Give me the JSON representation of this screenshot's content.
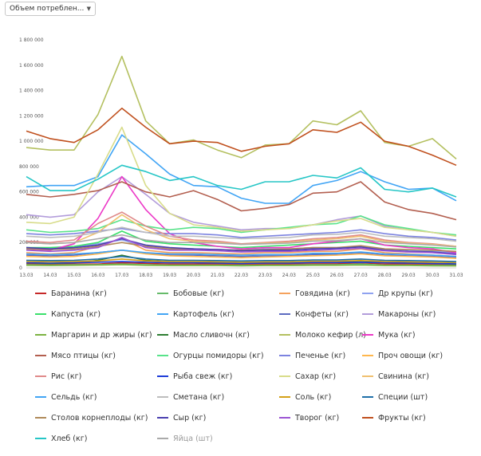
{
  "selector": {
    "value": "Объем потреблен...",
    "icon": "caret-down-icon"
  },
  "chart_data": {
    "type": "line",
    "title": "",
    "xlabel": "",
    "ylabel": "",
    "ylim": [
      0,
      1800000
    ],
    "grid": false,
    "legend_position": "bottom",
    "y_ticks": [
      "0",
      "200 000",
      "400 000",
      "600 000",
      "800 000",
      "1 000 000",
      "1 200 000",
      "1 400 000",
      "1 600 000",
      "1 800 000"
    ],
    "categories": [
      "13.03",
      "14.03",
      "15.03",
      "16.03",
      "17.03",
      "18.03",
      "19.03",
      "20.03",
      "21.03",
      "22.03",
      "23.03",
      "24.03",
      "25.03",
      "26.03",
      "27.03",
      "28.03",
      "29.03",
      "30.03",
      "31.03"
    ],
    "series": [
      {
        "name": "Баранина (кг)",
        "color": "#c62828",
        "values": [
          30000,
          28000,
          30000,
          30000,
          40000,
          35000,
          30000,
          30000,
          30000,
          28000,
          30000,
          30000,
          32000,
          32000,
          40000,
          30000,
          30000,
          28000,
          25000
        ]
      },
      {
        "name": "Бобовые (кг)",
        "color": "#66bb6a",
        "values": [
          25000,
          22000,
          25000,
          25000,
          30000,
          25000,
          22000,
          22000,
          22000,
          20000,
          22000,
          22000,
          25000,
          25000,
          30000,
          22000,
          22000,
          20000,
          18000
        ]
      },
      {
        "name": "Говядина (кг)",
        "color": "#f5a25d",
        "values": [
          120000,
          110000,
          120000,
          170000,
          230000,
          140000,
          120000,
          120000,
          115000,
          110000,
          120000,
          120000,
          130000,
          130000,
          150000,
          120000,
          110000,
          100000,
          90000
        ]
      },
      {
        "name": "Др крупы (кг)",
        "color": "#8fa2f0",
        "values": [
          160000,
          150000,
          160000,
          190000,
          220000,
          170000,
          150000,
          150000,
          145000,
          140000,
          150000,
          150000,
          160000,
          160000,
          170000,
          150000,
          140000,
          130000,
          120000
        ]
      },
      {
        "name": "Капуста (кг)",
        "color": "#3ae06b",
        "values": [
          160000,
          160000,
          170000,
          200000,
          290000,
          210000,
          190000,
          180000,
          170000,
          160000,
          170000,
          180000,
          190000,
          200000,
          210000,
          180000,
          170000,
          160000,
          150000
        ]
      },
      {
        "name": "Картофель (кг)",
        "color": "#42a5f5",
        "values": [
          640000,
          650000,
          650000,
          720000,
          1050000,
          900000,
          740000,
          650000,
          640000,
          550000,
          510000,
          510000,
          650000,
          690000,
          760000,
          680000,
          620000,
          630000,
          530000
        ]
      },
      {
        "name": "Конфеты (кг)",
        "color": "#5c6bc0",
        "values": [
          100000,
          95000,
          100000,
          120000,
          140000,
          115000,
          100000,
          100000,
          95000,
          90000,
          95000,
          95000,
          105000,
          105000,
          115000,
          100000,
          95000,
          90000,
          80000
        ]
      },
      {
        "name": "Макароны (кг)",
        "color": "#b39ddb",
        "values": [
          420000,
          400000,
          420000,
          600000,
          720000,
          580000,
          430000,
          360000,
          330000,
          300000,
          310000,
          310000,
          340000,
          380000,
          410000,
          330000,
          300000,
          280000,
          250000
        ]
      },
      {
        "name": "Маргарин и др жиры (кг)",
        "color": "#7cb342",
        "values": [
          20000,
          18000,
          20000,
          22000,
          25000,
          20000,
          18000,
          18000,
          18000,
          16000,
          18000,
          18000,
          20000,
          20000,
          22000,
          18000,
          18000,
          16000,
          15000
        ]
      },
      {
        "name": "Масло сливочн (кг)",
        "color": "#2e7d32",
        "values": [
          40000,
          35000,
          40000,
          60000,
          100000,
          60000,
          50000,
          45000,
          40000,
          35000,
          40000,
          40000,
          45000,
          45000,
          55000,
          45000,
          40000,
          35000,
          30000
        ]
      },
      {
        "name": "Молоко кефир (л)",
        "color": "#b4c060",
        "values": [
          950000,
          930000,
          930000,
          1210000,
          1670000,
          1160000,
          980000,
          1010000,
          930000,
          870000,
          970000,
          980000,
          1160000,
          1130000,
          1240000,
          990000,
          960000,
          1020000,
          860000
        ]
      },
      {
        "name": "Мука (кг)",
        "color": "#ec39c7",
        "values": [
          150000,
          140000,
          190000,
          390000,
          720000,
          460000,
          270000,
          200000,
          170000,
          150000,
          160000,
          160000,
          190000,
          210000,
          230000,
          180000,
          160000,
          150000,
          120000
        ]
      },
      {
        "name": "Мясо птицы (кг)",
        "color": "#b35f4f",
        "values": [
          580000,
          560000,
          580000,
          610000,
          680000,
          600000,
          560000,
          610000,
          540000,
          450000,
          470000,
          500000,
          590000,
          600000,
          680000,
          520000,
          460000,
          430000,
          380000
        ]
      },
      {
        "name": "Огурцы помидоры (кг)",
        "color": "#58e38a",
        "values": [
          300000,
          280000,
          290000,
          310000,
          380000,
          330000,
          300000,
          320000,
          310000,
          280000,
          300000,
          320000,
          340000,
          350000,
          410000,
          340000,
          310000,
          280000,
          260000
        ]
      },
      {
        "name": "Печенье (кг)",
        "color": "#7c83e0",
        "values": [
          270000,
          260000,
          270000,
          290000,
          310000,
          280000,
          270000,
          270000,
          260000,
          240000,
          250000,
          260000,
          270000,
          280000,
          300000,
          270000,
          250000,
          240000,
          220000
        ]
      },
      {
        "name": "Проч овощи (кг)",
        "color": "#ffb74d",
        "values": [
          90000,
          85000,
          90000,
          110000,
          140000,
          110000,
          95000,
          90000,
          85000,
          80000,
          85000,
          90000,
          95000,
          100000,
          110000,
          95000,
          90000,
          85000,
          75000
        ]
      },
      {
        "name": "Рис (кг)",
        "color": "#e08a8a",
        "values": [
          210000,
          200000,
          220000,
          350000,
          440000,
          330000,
          250000,
          220000,
          210000,
          190000,
          200000,
          210000,
          230000,
          240000,
          260000,
          220000,
          200000,
          190000,
          170000
        ]
      },
      {
        "name": "Рыба свеж (кг)",
        "color": "#1e3cd8",
        "values": [
          40000,
          38000,
          40000,
          45000,
          50000,
          45000,
          40000,
          40000,
          38000,
          35000,
          38000,
          38000,
          42000,
          42000,
          45000,
          40000,
          38000,
          35000,
          32000
        ]
      },
      {
        "name": "Сахар (кг)",
        "color": "#d8dc8a",
        "values": [
          360000,
          350000,
          400000,
          740000,
          1110000,
          650000,
          430000,
          340000,
          320000,
          290000,
          300000,
          310000,
          340000,
          370000,
          390000,
          320000,
          300000,
          280000,
          250000
        ]
      },
      {
        "name": "Свинина (кг)",
        "color": "#f0c070",
        "values": [
          200000,
          190000,
          200000,
          280000,
          420000,
          300000,
          230000,
          210000,
          200000,
          185000,
          195000,
          200000,
          220000,
          230000,
          250000,
          210000,
          195000,
          185000,
          170000
        ]
      },
      {
        "name": "Сельдь (кг)",
        "color": "#42a5f5",
        "values": [
          110000,
          105000,
          110000,
          120000,
          140000,
          120000,
          110000,
          110000,
          105000,
          100000,
          105000,
          105000,
          115000,
          115000,
          125000,
          110000,
          105000,
          100000,
          90000
        ]
      },
      {
        "name": "Сметана (кг)",
        "color": "#bdbdbd",
        "values": [
          250000,
          240000,
          250000,
          280000,
          320000,
          280000,
          250000,
          250000,
          240000,
          230000,
          235000,
          240000,
          260000,
          265000,
          280000,
          250000,
          240000,
          230000,
          210000
        ]
      },
      {
        "name": "Соль (кг)",
        "color": "#d4a017",
        "values": [
          50000,
          48000,
          50000,
          55000,
          70000,
          55000,
          50000,
          50000,
          48000,
          45000,
          48000,
          48000,
          52000,
          52000,
          58000,
          50000,
          48000,
          45000,
          42000
        ]
      },
      {
        "name": "Специи (шт)",
        "color": "#1f6fa8",
        "values": [
          60000,
          58000,
          60000,
          70000,
          90000,
          70000,
          60000,
          60000,
          58000,
          55000,
          58000,
          58000,
          62000,
          62000,
          70000,
          60000,
          58000,
          55000,
          50000
        ]
      },
      {
        "name": "Столов корнеплоды (кг)",
        "color": "#b08a5a",
        "values": [
          150000,
          145000,
          150000,
          170000,
          200000,
          170000,
          150000,
          150000,
          145000,
          140000,
          145000,
          150000,
          160000,
          160000,
          175000,
          150000,
          145000,
          140000,
          130000
        ]
      },
      {
        "name": "Сыр (кг)",
        "color": "#4a3fb0",
        "values": [
          160000,
          150000,
          160000,
          180000,
          230000,
          180000,
          160000,
          150000,
          145000,
          135000,
          140000,
          140000,
          150000,
          155000,
          165000,
          140000,
          130000,
          125000,
          110000
        ]
      },
      {
        "name": "Творог (кг)",
        "color": "#9c55d4",
        "values": [
          140000,
          130000,
          140000,
          160000,
          240000,
          160000,
          140000,
          140000,
          135000,
          125000,
          130000,
          130000,
          140000,
          145000,
          155000,
          135000,
          125000,
          120000,
          105000
        ]
      },
      {
        "name": "Фрукты (кг)",
        "color": "#c0501e",
        "values": [
          1080000,
          1020000,
          990000,
          1090000,
          1260000,
          1110000,
          980000,
          1000000,
          990000,
          920000,
          960000,
          980000,
          1090000,
          1070000,
          1150000,
          1000000,
          960000,
          890000,
          810000
        ]
      },
      {
        "name": "Хлеб (кг)",
        "color": "#26c6c6",
        "values": [
          720000,
          610000,
          610000,
          700000,
          810000,
          760000,
          690000,
          720000,
          650000,
          620000,
          680000,
          680000,
          730000,
          710000,
          790000,
          620000,
          600000,
          630000,
          560000
        ]
      },
      {
        "name": "Яйца (шт)",
        "color": "#aaaaaa",
        "muted": true,
        "values": [
          200000,
          190000,
          200000,
          230000,
          260000,
          220000,
          200000,
          200000,
          195000,
          185000,
          190000,
          195000,
          210000,
          215000,
          230000,
          200000,
          190000,
          180000,
          165000
        ]
      }
    ]
  }
}
